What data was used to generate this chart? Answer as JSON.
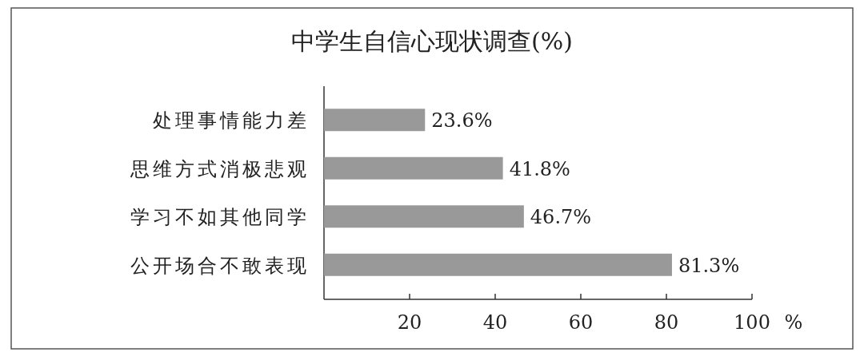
{
  "chart_data": {
    "type": "bar",
    "orientation": "horizontal",
    "title": "中学生自信心现状调查(%)",
    "xlabel": "%",
    "categories": [
      "处理事情能力差",
      "思维方式消极悲观",
      "学习不如其他同学",
      "公开场合不敢表现"
    ],
    "values": [
      23.6,
      41.8,
      46.7,
      81.3
    ],
    "value_labels": [
      "23.6%",
      "41.8%",
      "46.7%",
      "81.3%"
    ],
    "color": "#999999",
    "xlim": [
      0,
      100
    ],
    "xticks": [
      20,
      40,
      60,
      80,
      100
    ]
  }
}
